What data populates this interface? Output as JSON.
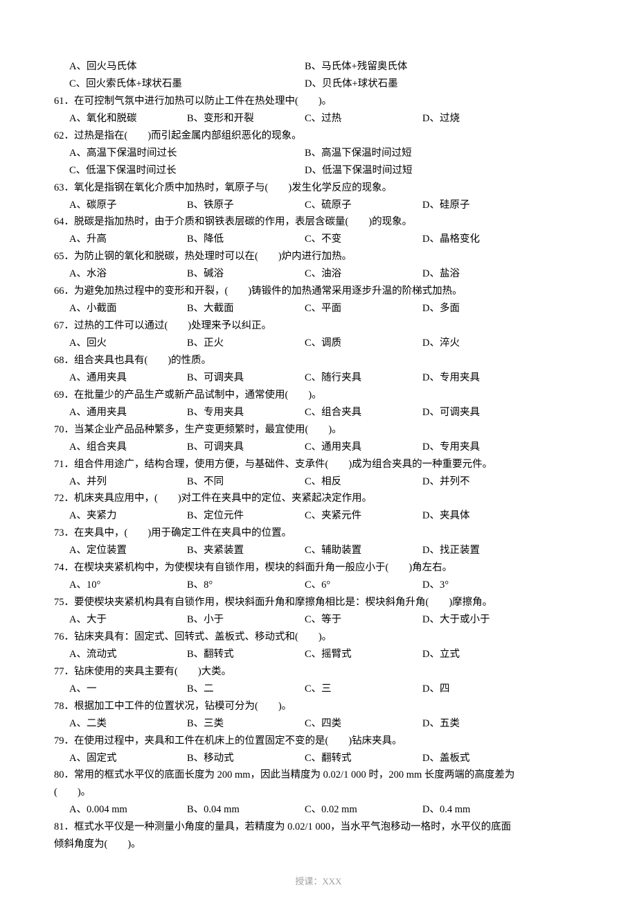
{
  "text_color": "#000000",
  "footer_color": "#a0a0a0",
  "background_color": "#ffffff",
  "font_family": "SimSun",
  "font_size_pt": 11,
  "orphan_options": {
    "a": "A、回火马氏体",
    "b": "B、马氏体+残留奥氏体",
    "c": "C、回火索氏体+球状石墨",
    "d": "D、贝氏体+球状石墨"
  },
  "questions": [
    {
      "n": "61",
      "q": "61．在可控制气氛中进行加热可以防止工件在热处理中(　　)。",
      "layout": "four",
      "opts": [
        "A、氧化和脱碳",
        "B、变形和开裂",
        "C、过热",
        "D、过烧"
      ]
    },
    {
      "n": "62",
      "q": "62．过热是指在(　　)而引起金属内部组织恶化的现象。",
      "layout": "two",
      "opts": [
        "A、高温下保温时间过长",
        "B、高温下保温时间过短",
        "C、低温下保温时间过长",
        "D、低温下保温时间过短"
      ]
    },
    {
      "n": "63",
      "q": "63．氧化是指钢在氧化介质中加热时，氧原子与(　　)发生化学反应的现象。",
      "layout": "four",
      "opts": [
        "A、碳原子",
        "B、铁原子",
        "C、硫原子",
        "D、硅原子"
      ]
    },
    {
      "n": "64",
      "q": "64．脱碳是指加热时，由于介质和钢铁表层碳的作用，表层含碳量(　　)的现象。",
      "layout": "four",
      "opts": [
        "A、升高",
        "B、降低",
        "C、不变",
        "D、晶格变化"
      ]
    },
    {
      "n": "65",
      "q": "65．为防止钢的氧化和脱碳，热处理时可以在(　　)炉内进行加热。",
      "layout": "four",
      "opts": [
        "A、水浴",
        "B、碱浴",
        "C、油浴",
        "D、盐浴"
      ]
    },
    {
      "n": "66",
      "q": "66．为避免加热过程中的变形和开裂，(　　)铸锻件的加热通常采用逐步升温的阶梯式加热。",
      "layout": "four",
      "opts": [
        "A、小截面",
        "B、大截面",
        "C、平面",
        "D、多面"
      ]
    },
    {
      "n": "67",
      "q": "67．过热的工件可以通过(　　)处理来予以纠正。",
      "layout": "four",
      "opts": [
        "A、回火",
        "B、正火",
        "C、调质",
        "D、淬火"
      ]
    },
    {
      "n": "68",
      "q": "68．组合夹具也具有(　　)的性质。",
      "layout": "four",
      "opts": [
        "A、通用夹具",
        "B、可调夹具",
        "C、随行夹具",
        "D、专用夹具"
      ]
    },
    {
      "n": "69",
      "q": "69．在批量少的产品生产或新产品试制中，通常使用(　　)。",
      "layout": "four",
      "opts": [
        "A、通用夹具",
        "B、专用夹具",
        "C、组合夹具",
        "D、可调夹具"
      ]
    },
    {
      "n": "70",
      "q": "70．当某企业产品品种繁多，生产变更频繁时，最宜使用(　　)。",
      "layout": "four",
      "opts": [
        "A、组合夹具",
        "B、可调夹具",
        "C、通用夹具",
        "D、专用夹具"
      ]
    },
    {
      "n": "71",
      "q": "71．组合件用途广，结构合理，使用方便，与基础件、支承件(　　)成为组合夹具的一种重要元件。",
      "layout": "four",
      "opts": [
        "A、并列",
        "B、不同",
        "C、相反",
        "D、并列不"
      ]
    },
    {
      "n": "72",
      "q": "72．机床夹具应用中，(　　)对工件在夹具中的定位、夹紧起决定作用。",
      "layout": "four",
      "opts": [
        "A、夹紧力",
        "B、定位元件",
        "C、夹紧元件",
        "D、夹具体"
      ]
    },
    {
      "n": "73",
      "q": "73．在夹具中，(　　)用于确定工件在夹具中的位置。",
      "layout": "four",
      "opts": [
        "A、定位装置",
        "B、夹紧装置",
        "C、辅助装置",
        "D、找正装置"
      ]
    },
    {
      "n": "74",
      "q": "74．在楔块夹紧机构中，为使楔块有自锁作用，楔块的斜面升角一般应小于(　　)角左右。",
      "layout": "four",
      "opts": [
        "A、10°",
        "B、8°",
        "C、6°",
        "D、3°"
      ]
    },
    {
      "n": "75",
      "q": "75．要使楔块夹紧机构具有自锁作用，楔块斜面升角和摩擦角相比是：楔块斜角升角(　　)摩擦角。",
      "layout": "four",
      "opts": [
        "A、大于",
        "B、小于",
        "C、等于",
        "D、大于或小于"
      ]
    },
    {
      "n": "76",
      "q": "76．钻床夹具有：固定式、回转式、盖板式、移动式和(　　)。",
      "layout": "four",
      "opts": [
        "A、流动式",
        "B、翻转式",
        "C、摇臂式",
        "D、立式"
      ]
    },
    {
      "n": "77",
      "q": "77．钻床使用的夹具主要有(　　)大类。",
      "layout": "four",
      "opts": [
        "A、一",
        "B、二",
        "C、三",
        "D、四"
      ]
    },
    {
      "n": "78",
      "q": "78．根据加工中工件的位置状况，钻模可分为(　　)。",
      "layout": "four",
      "opts": [
        "A、二类",
        "B、三类",
        "C、四类",
        "D、五类"
      ]
    },
    {
      "n": "79",
      "q": "79．在使用过程中，夹具和工件在机床上的位置固定不变的是(　　)钻床夹具。",
      "layout": "four",
      "opts": [
        "A、固定式",
        "B、移动式",
        "C、翻转式",
        "D、盖板式"
      ]
    },
    {
      "n": "80",
      "q": "80．常用的框式水平仪的底面长度为 200 mm，因此当精度为 0.02/1 000 时，200 mm 长度两端的高度差为",
      "q2": "(　　)。",
      "layout": "four",
      "opts": [
        "A、0.004 mm",
        "B、0.04 mm",
        "C、0.02 mm",
        "D、0.4 mm"
      ]
    },
    {
      "n": "81",
      "q": "81．框式水平仪是一种测量小角度的量具，若精度为 0.02/1 000，当水平气泡移动一格时，水平仪的底面",
      "q2": "倾斜角度为(　　)。"
    }
  ],
  "footer": "授课：XXX"
}
